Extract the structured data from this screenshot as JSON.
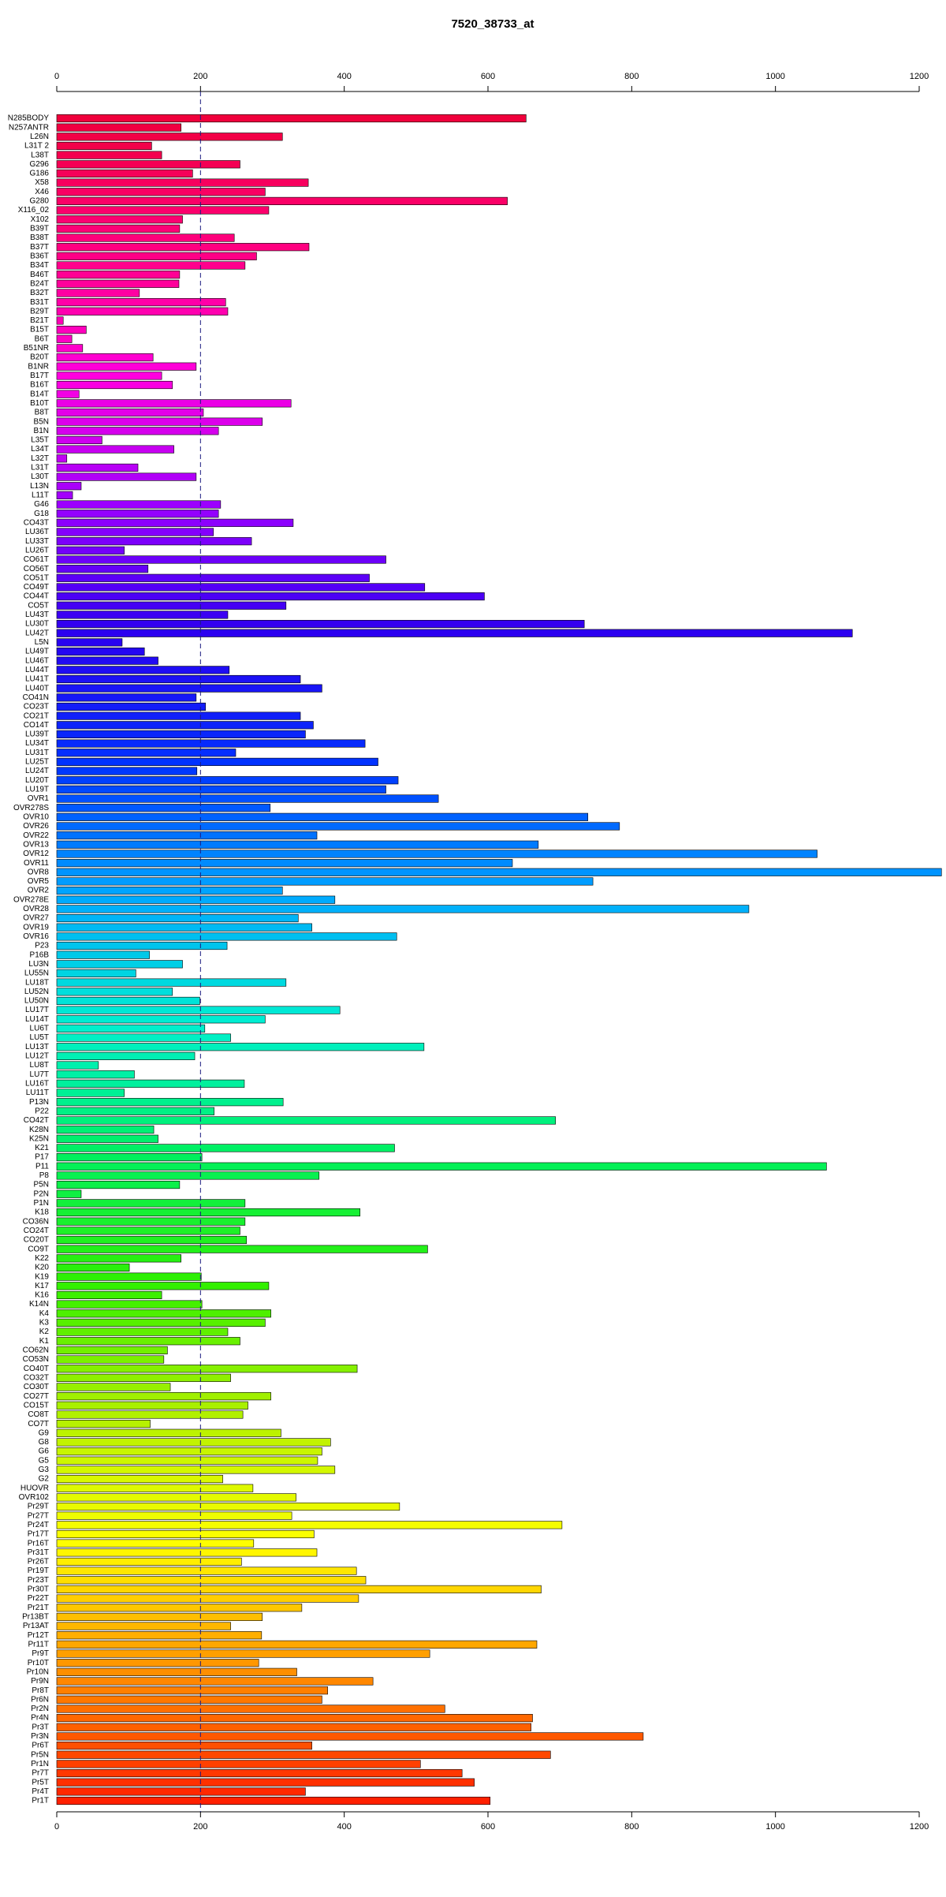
{
  "chart_data": {
    "type": "hbar",
    "title": "7520_38733_at",
    "categories": [
      "N285BODY",
      "N257ANTR",
      "L26N",
      "L31T 2",
      "L38T",
      "G296",
      "G186",
      "X58",
      "X46",
      "G280",
      "X116_02",
      "X102",
      "B39T",
      "B38T",
      "B37T",
      "B36T",
      "B34T",
      "B46T",
      "B24T",
      "B32T",
      "B31T",
      "B29T",
      "B21T",
      "B15T",
      "B6T",
      "B51NR",
      "B20T",
      "B1NR",
      "B17T",
      "B16T",
      "B14T",
      "B10T",
      "B8T",
      "B5N",
      "B1N",
      "L35T",
      "L34T",
      "L32T",
      "L31T",
      "L30T",
      "L13N",
      "L11T",
      "G46",
      "G18",
      "CO43T",
      "LU36T",
      "LU33T",
      "LU26T",
      "CO61T",
      "CO56T",
      "CO51T",
      "CO49T",
      "CO44T",
      "CO5T",
      "LU43T",
      "LU30T",
      "LU42T",
      "L5N",
      "LU49T",
      "LU46T",
      "LU44T",
      "LU41T",
      "LU40T",
      "CO41N",
      "CO23T",
      "CO21T",
      "CO14T",
      "LU39T",
      "LU34T",
      "LU31T",
      "LU25T",
      "LU24T",
      "LU20T",
      "LU19T",
      "OVR1",
      "OVR278S",
      "OVR10",
      "OVR26",
      "OVR22",
      "OVR13",
      "OVR12",
      "OVR11",
      "OVR8",
      "OVR5",
      "OVR2",
      "OVR278E",
      "OVR28",
      "OVR27",
      "OVR19",
      "OVR16",
      "P23",
      "P16B",
      "LU3N",
      "LU55N",
      "LU18T",
      "LU52N",
      "LU50N",
      "LU17T",
      "LU14T",
      "LU6T",
      "LU5T",
      "LU13T",
      "LU12T",
      "LU8T",
      "LU7T",
      "LU16T",
      "LU11T",
      "P13N",
      "P22",
      "CO42T",
      "K28N",
      "K25N",
      "K21",
      "P17",
      "P11",
      "P8",
      "P5N",
      "P2N",
      "P1N",
      "K18",
      "CO36N",
      "CO24T",
      "CO20T",
      "CO9T",
      "K22",
      "K20",
      "K19",
      "K17",
      "K16",
      "K14N",
      "K4",
      "K3",
      "K2",
      "K1",
      "CO62N",
      "CO53N",
      "CO40T",
      "CO32T",
      "CO30T",
      "CO27T",
      "CO15T",
      "CO8T",
      "CO7T",
      "G9",
      "G8",
      "G6",
      "G5",
      "G3",
      "G2",
      "HUOVR",
      "OVR102",
      "Pr29T",
      "Pr27T",
      "Pr24T",
      "Pr17T",
      "Pr16T",
      "Pr31T",
      "Pr26T",
      "Pr19T",
      "Pr23T",
      "Pr30T",
      "Pr22T",
      "Pr21T",
      "Pr13BT",
      "Pr13AT",
      "Pr12T",
      "Pr11T",
      "Pr9T",
      "Pr10T",
      "Pr10N",
      "Pr9N",
      "Pr8T",
      "Pr6N",
      "Pr2N",
      "Pr4N",
      "Pr3T",
      "Pr3N",
      "Pr6T",
      "Pr5N",
      "Pr1N",
      "Pr7T",
      "Pr5T",
      "Pr4T",
      "Pr1T"
    ],
    "values": [
      653,
      173,
      314,
      132,
      146,
      255,
      189,
      350,
      290,
      627,
      295,
      175,
      171,
      247,
      351,
      278,
      262,
      171,
      170,
      115,
      235,
      238,
      9,
      41,
      21,
      36,
      134,
      194,
      146,
      161,
      31,
      326,
      204,
      286,
      225,
      63,
      163,
      14,
      113,
      194,
      34,
      22,
      228,
      225,
      329,
      218,
      271,
      94,
      458,
      127,
      435,
      512,
      595,
      319,
      238,
      734,
      1107,
      91,
      122,
      141,
      240,
      339,
      369,
      194,
      207,
      339,
      357,
      346,
      429,
      249,
      447,
      195,
      475,
      458,
      531,
      297,
      739,
      783,
      362,
      670,
      1058,
      634,
      1231,
      746,
      314,
      387,
      963,
      336,
      355,
      473,
      237,
      129,
      175,
      110,
      319,
      161,
      199,
      394,
      290,
      206,
      242,
      511,
      192,
      58,
      108,
      261,
      94,
      315,
      219,
      694,
      135,
      141,
      470,
      202,
      1071,
      365,
      171,
      34,
      262,
      422,
      262,
      255,
      264,
      516,
      173,
      101,
      201,
      295,
      146,
      202,
      298,
      290,
      238,
      255,
      154,
      149,
      418,
      242,
      158,
      298,
      266,
      259,
      130,
      312,
      381,
      369,
      363,
      387,
      231,
      273,
      333,
      477,
      327,
      703,
      358,
      274,
      362,
      257,
      417,
      430,
      674,
      420,
      341,
      286,
      242,
      285,
      668,
      519,
      281,
      334,
      440,
      377,
      369,
      540,
      662,
      660,
      816,
      355,
      687,
      506,
      564,
      581,
      346,
      603
    ],
    "color_stops": [
      "#f0003c",
      "#ff0080",
      "#ff00e0",
      "#9a00ff",
      "#2a00f0",
      "#0033ff",
      "#00a8ff",
      "#00f0d0",
      "#00f060",
      "#30f000",
      "#b0f000",
      "#ffff00",
      "#ff9000",
      "#ff2000"
    ],
    "xlim": [
      0,
      1200
    ],
    "xticks": [
      0,
      200,
      400,
      600,
      800,
      1000,
      1200
    ],
    "ref_line": 200,
    "grid": false
  }
}
